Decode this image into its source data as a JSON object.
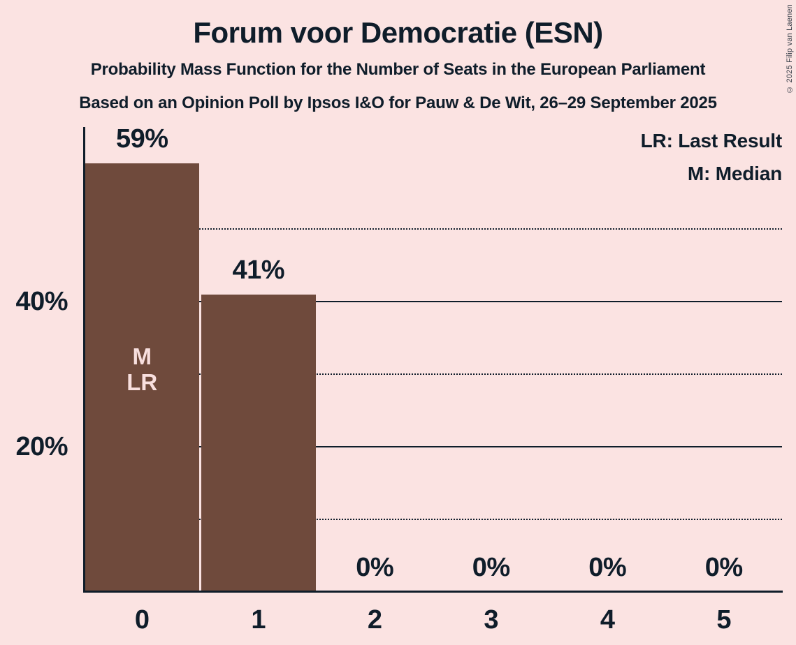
{
  "header": {
    "title": "Forum voor Democratie (ESN)",
    "subtitle1": "Probability Mass Function for the Number of Seats in the European Parliament",
    "subtitle2": "Based on an Opinion Poll by Ipsos I&O for Pauw & De Wit, 26–29 September 2025"
  },
  "legend": {
    "line1": "LR: Last Result",
    "line2": "M: Median"
  },
  "copyright": "© 2025 Filip van Laenen",
  "colors": {
    "background": "#fbe3e2",
    "ink": "#0f1d2a",
    "bar": "#6f4a3c",
    "bar_label": "#f8dfde",
    "copyright_text": "#39404a"
  },
  "chart_data": {
    "type": "bar",
    "title": "Forum voor Democratie (ESN)",
    "subtitle": "Probability Mass Function for the Number of Seats in the European Parliament",
    "source": "Based on an Opinion Poll by Ipsos I&O for Pauw & De Wit, 26–29 September 2025",
    "xlabel": "",
    "ylabel": "",
    "categories": [
      "0",
      "1",
      "2",
      "3",
      "4",
      "5"
    ],
    "values": [
      59,
      41,
      0,
      0,
      0,
      0
    ],
    "value_labels": [
      "59%",
      "41%",
      "0%",
      "0%",
      "0%",
      "0%"
    ],
    "ylim": [
      0,
      64
    ],
    "yticks": [
      {
        "pct": 20,
        "label": "20%"
      },
      {
        "pct": 40,
        "label": "40%"
      }
    ],
    "gridlines": [
      {
        "pct": 10,
        "style": "dotted"
      },
      {
        "pct": 20,
        "style": "solid"
      },
      {
        "pct": 30,
        "style": "dotted"
      },
      {
        "pct": 40,
        "style": "solid"
      },
      {
        "pct": 50,
        "style": "dotted"
      }
    ],
    "annotations": [
      {
        "category": "0",
        "lines": [
          "M",
          "LR"
        ]
      }
    ],
    "legend_notes": [
      "LR: Last Result",
      "M: Median"
    ],
    "grid": "horizontal",
    "legend_position": "top-right"
  }
}
